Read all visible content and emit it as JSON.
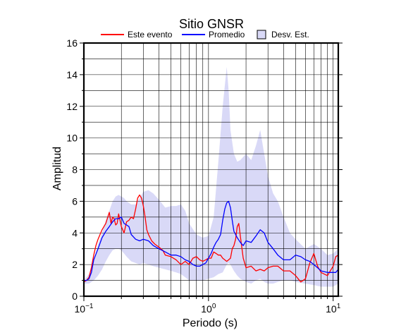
{
  "chart_data": {
    "type": "line",
    "title": "Sitio GNSR",
    "xlabel": "Periodo (s)",
    "ylabel": "Amplitud",
    "xscale": "log",
    "xlim": [
      0.1,
      11
    ],
    "ylim": [
      0,
      16
    ],
    "yticks": [
      0,
      2,
      4,
      6,
      8,
      10,
      12,
      14,
      16
    ],
    "xticks": [
      {
        "value": 0.1,
        "base": "10",
        "exp": "−1"
      },
      {
        "value": 1,
        "base": "10",
        "exp": "0"
      },
      {
        "value": 10,
        "base": "10",
        "exp": "1"
      }
    ],
    "grid": true,
    "legend_position": "top",
    "legend": [
      {
        "label": "Este evento",
        "kind": "line",
        "color": "#ff0000"
      },
      {
        "label": "Promedio",
        "kind": "line",
        "color": "#0000ff"
      },
      {
        "label": "Desv. Est.",
        "kind": "box",
        "color": "#d9d9f7"
      }
    ],
    "band": {
      "name": "Desv. Est.",
      "color": "#d9d9f7",
      "x": [
        0.1,
        0.11,
        0.12,
        0.13,
        0.14,
        0.15,
        0.16,
        0.17,
        0.18,
        0.19,
        0.2,
        0.21,
        0.22,
        0.24,
        0.26,
        0.28,
        0.3,
        0.33,
        0.36,
        0.4,
        0.45,
        0.5,
        0.55,
        0.6,
        0.65,
        0.7,
        0.8,
        0.9,
        1.0,
        1.1,
        1.2,
        1.3,
        1.4,
        1.45,
        1.5,
        1.6,
        1.7,
        1.8,
        2.0,
        2.2,
        2.4,
        2.6,
        2.8,
        3.0,
        3.3,
        3.6,
        4.0,
        4.5,
        5.0,
        6.0,
        7.0,
        8.0,
        9.0,
        10.0,
        11.0
      ],
      "upper": [
        1.0,
        1.4,
        2.2,
        3.3,
        4.0,
        4.8,
        5.4,
        6.0,
        6.3,
        6.4,
        6.3,
        6.2,
        6.0,
        5.8,
        5.8,
        6.2,
        6.6,
        6.7,
        6.5,
        6.1,
        5.6,
        5.7,
        5.7,
        5.8,
        5.4,
        4.6,
        3.9,
        3.7,
        3.8,
        5.0,
        8.5,
        12.0,
        14.5,
        13.0,
        10.5,
        9.0,
        8.5,
        8.6,
        9.0,
        8.6,
        9.5,
        10.5,
        9.0,
        7.6,
        6.5,
        6.0,
        5.0,
        4.0,
        3.6,
        3.0,
        3.3,
        3.0,
        2.6,
        2.7,
        3.0
      ],
      "lower": [
        0.8,
        0.8,
        1.0,
        1.3,
        1.7,
        2.2,
        2.6,
        2.9,
        3.0,
        3.0,
        2.9,
        2.7,
        2.5,
        2.2,
        2.1,
        2.0,
        2.1,
        2.0,
        1.9,
        1.8,
        1.7,
        1.6,
        1.5,
        1.4,
        1.2,
        1.0,
        1.0,
        1.0,
        1.1,
        1.2,
        1.4,
        1.5,
        2.0,
        2.1,
        2.0,
        1.6,
        1.3,
        1.1,
        0.9,
        0.8,
        1.0,
        1.1,
        0.9,
        0.8,
        0.8,
        0.9,
        1.0,
        1.0,
        0.9,
        0.8,
        0.7,
        0.6,
        0.6,
        0.6,
        0.8
      ]
    },
    "series": [
      {
        "name": "Este evento",
        "color": "#ff0000",
        "x": [
          0.1,
          0.105,
          0.11,
          0.115,
          0.12,
          0.125,
          0.13,
          0.14,
          0.15,
          0.16,
          0.165,
          0.17,
          0.175,
          0.18,
          0.185,
          0.19,
          0.2,
          0.21,
          0.22,
          0.23,
          0.24,
          0.25,
          0.26,
          0.27,
          0.28,
          0.29,
          0.3,
          0.31,
          0.32,
          0.33,
          0.35,
          0.37,
          0.4,
          0.43,
          0.45,
          0.5,
          0.55,
          0.6,
          0.65,
          0.7,
          0.75,
          0.8,
          0.85,
          0.9,
          0.95,
          1.0,
          1.05,
          1.1,
          1.15,
          1.2,
          1.25,
          1.3,
          1.35,
          1.4,
          1.45,
          1.5,
          1.55,
          1.6,
          1.65,
          1.7,
          1.75,
          1.8,
          1.9,
          2.0,
          2.2,
          2.4,
          2.6,
          2.8,
          3.0,
          3.3,
          3.6,
          4.0,
          4.5,
          5.0,
          5.5,
          6.0,
          6.5,
          7.0,
          7.5,
          8.0,
          9.0,
          10.0,
          10.5,
          11.0
        ],
        "y": [
          0.9,
          1.0,
          1.2,
          1.8,
          2.6,
          3.2,
          3.6,
          4.2,
          4.6,
          5.3,
          4.6,
          5.0,
          4.9,
          4.5,
          4.6,
          5.2,
          4.4,
          4.0,
          4.7,
          4.8,
          5.0,
          4.9,
          5.5,
          6.2,
          6.4,
          6.2,
          5.7,
          5.0,
          4.2,
          3.9,
          3.5,
          3.3,
          3.1,
          2.9,
          2.6,
          2.5,
          2.3,
          2.0,
          2.2,
          2.0,
          2.4,
          2.5,
          2.3,
          2.2,
          2.3,
          2.4,
          2.4,
          2.8,
          2.7,
          2.6,
          2.6,
          2.4,
          2.3,
          2.2,
          2.3,
          2.4,
          3.0,
          3.2,
          3.6,
          4.4,
          4.6,
          3.8,
          2.4,
          1.8,
          1.9,
          1.6,
          1.7,
          1.6,
          1.8,
          1.9,
          1.9,
          1.6,
          1.6,
          1.3,
          0.9,
          1.1,
          2.1,
          2.7,
          1.9,
          1.5,
          1.3,
          1.9,
          2.5,
          2.6
        ]
      },
      {
        "name": "Promedio",
        "color": "#0000ff",
        "x": [
          0.1,
          0.105,
          0.11,
          0.115,
          0.12,
          0.13,
          0.14,
          0.15,
          0.16,
          0.17,
          0.18,
          0.19,
          0.2,
          0.21,
          0.22,
          0.23,
          0.24,
          0.26,
          0.28,
          0.3,
          0.33,
          0.36,
          0.4,
          0.45,
          0.5,
          0.55,
          0.6,
          0.65,
          0.7,
          0.75,
          0.8,
          0.85,
          0.9,
          0.95,
          1.0,
          1.05,
          1.1,
          1.15,
          1.2,
          1.25,
          1.3,
          1.35,
          1.4,
          1.45,
          1.5,
          1.55,
          1.6,
          1.7,
          1.8,
          1.9,
          2.0,
          2.2,
          2.4,
          2.6,
          2.8,
          3.0,
          3.3,
          3.6,
          4.0,
          4.5,
          5.0,
          5.5,
          6.0,
          6.5,
          7.0,
          7.5,
          8.0,
          9.0,
          10.0,
          10.5,
          11.0
        ],
        "y": [
          1.0,
          1.0,
          1.1,
          1.5,
          2.3,
          3.0,
          3.7,
          4.1,
          4.4,
          4.7,
          4.9,
          4.9,
          5.0,
          4.6,
          4.5,
          4.4,
          3.9,
          3.6,
          3.5,
          3.6,
          3.5,
          3.2,
          3.0,
          2.8,
          2.6,
          2.6,
          2.5,
          2.3,
          2.2,
          2.0,
          1.9,
          1.9,
          2.0,
          2.1,
          2.4,
          2.7,
          3.1,
          3.4,
          3.6,
          3.9,
          4.8,
          5.5,
          5.9,
          6.0,
          5.6,
          4.8,
          4.1,
          3.7,
          3.4,
          3.2,
          3.5,
          3.4,
          3.8,
          4.2,
          4.0,
          3.4,
          3.0,
          2.6,
          2.3,
          2.3,
          2.6,
          2.5,
          2.3,
          2.2,
          2.0,
          1.8,
          1.6,
          1.5,
          1.5,
          1.5,
          1.7
        ]
      }
    ]
  }
}
